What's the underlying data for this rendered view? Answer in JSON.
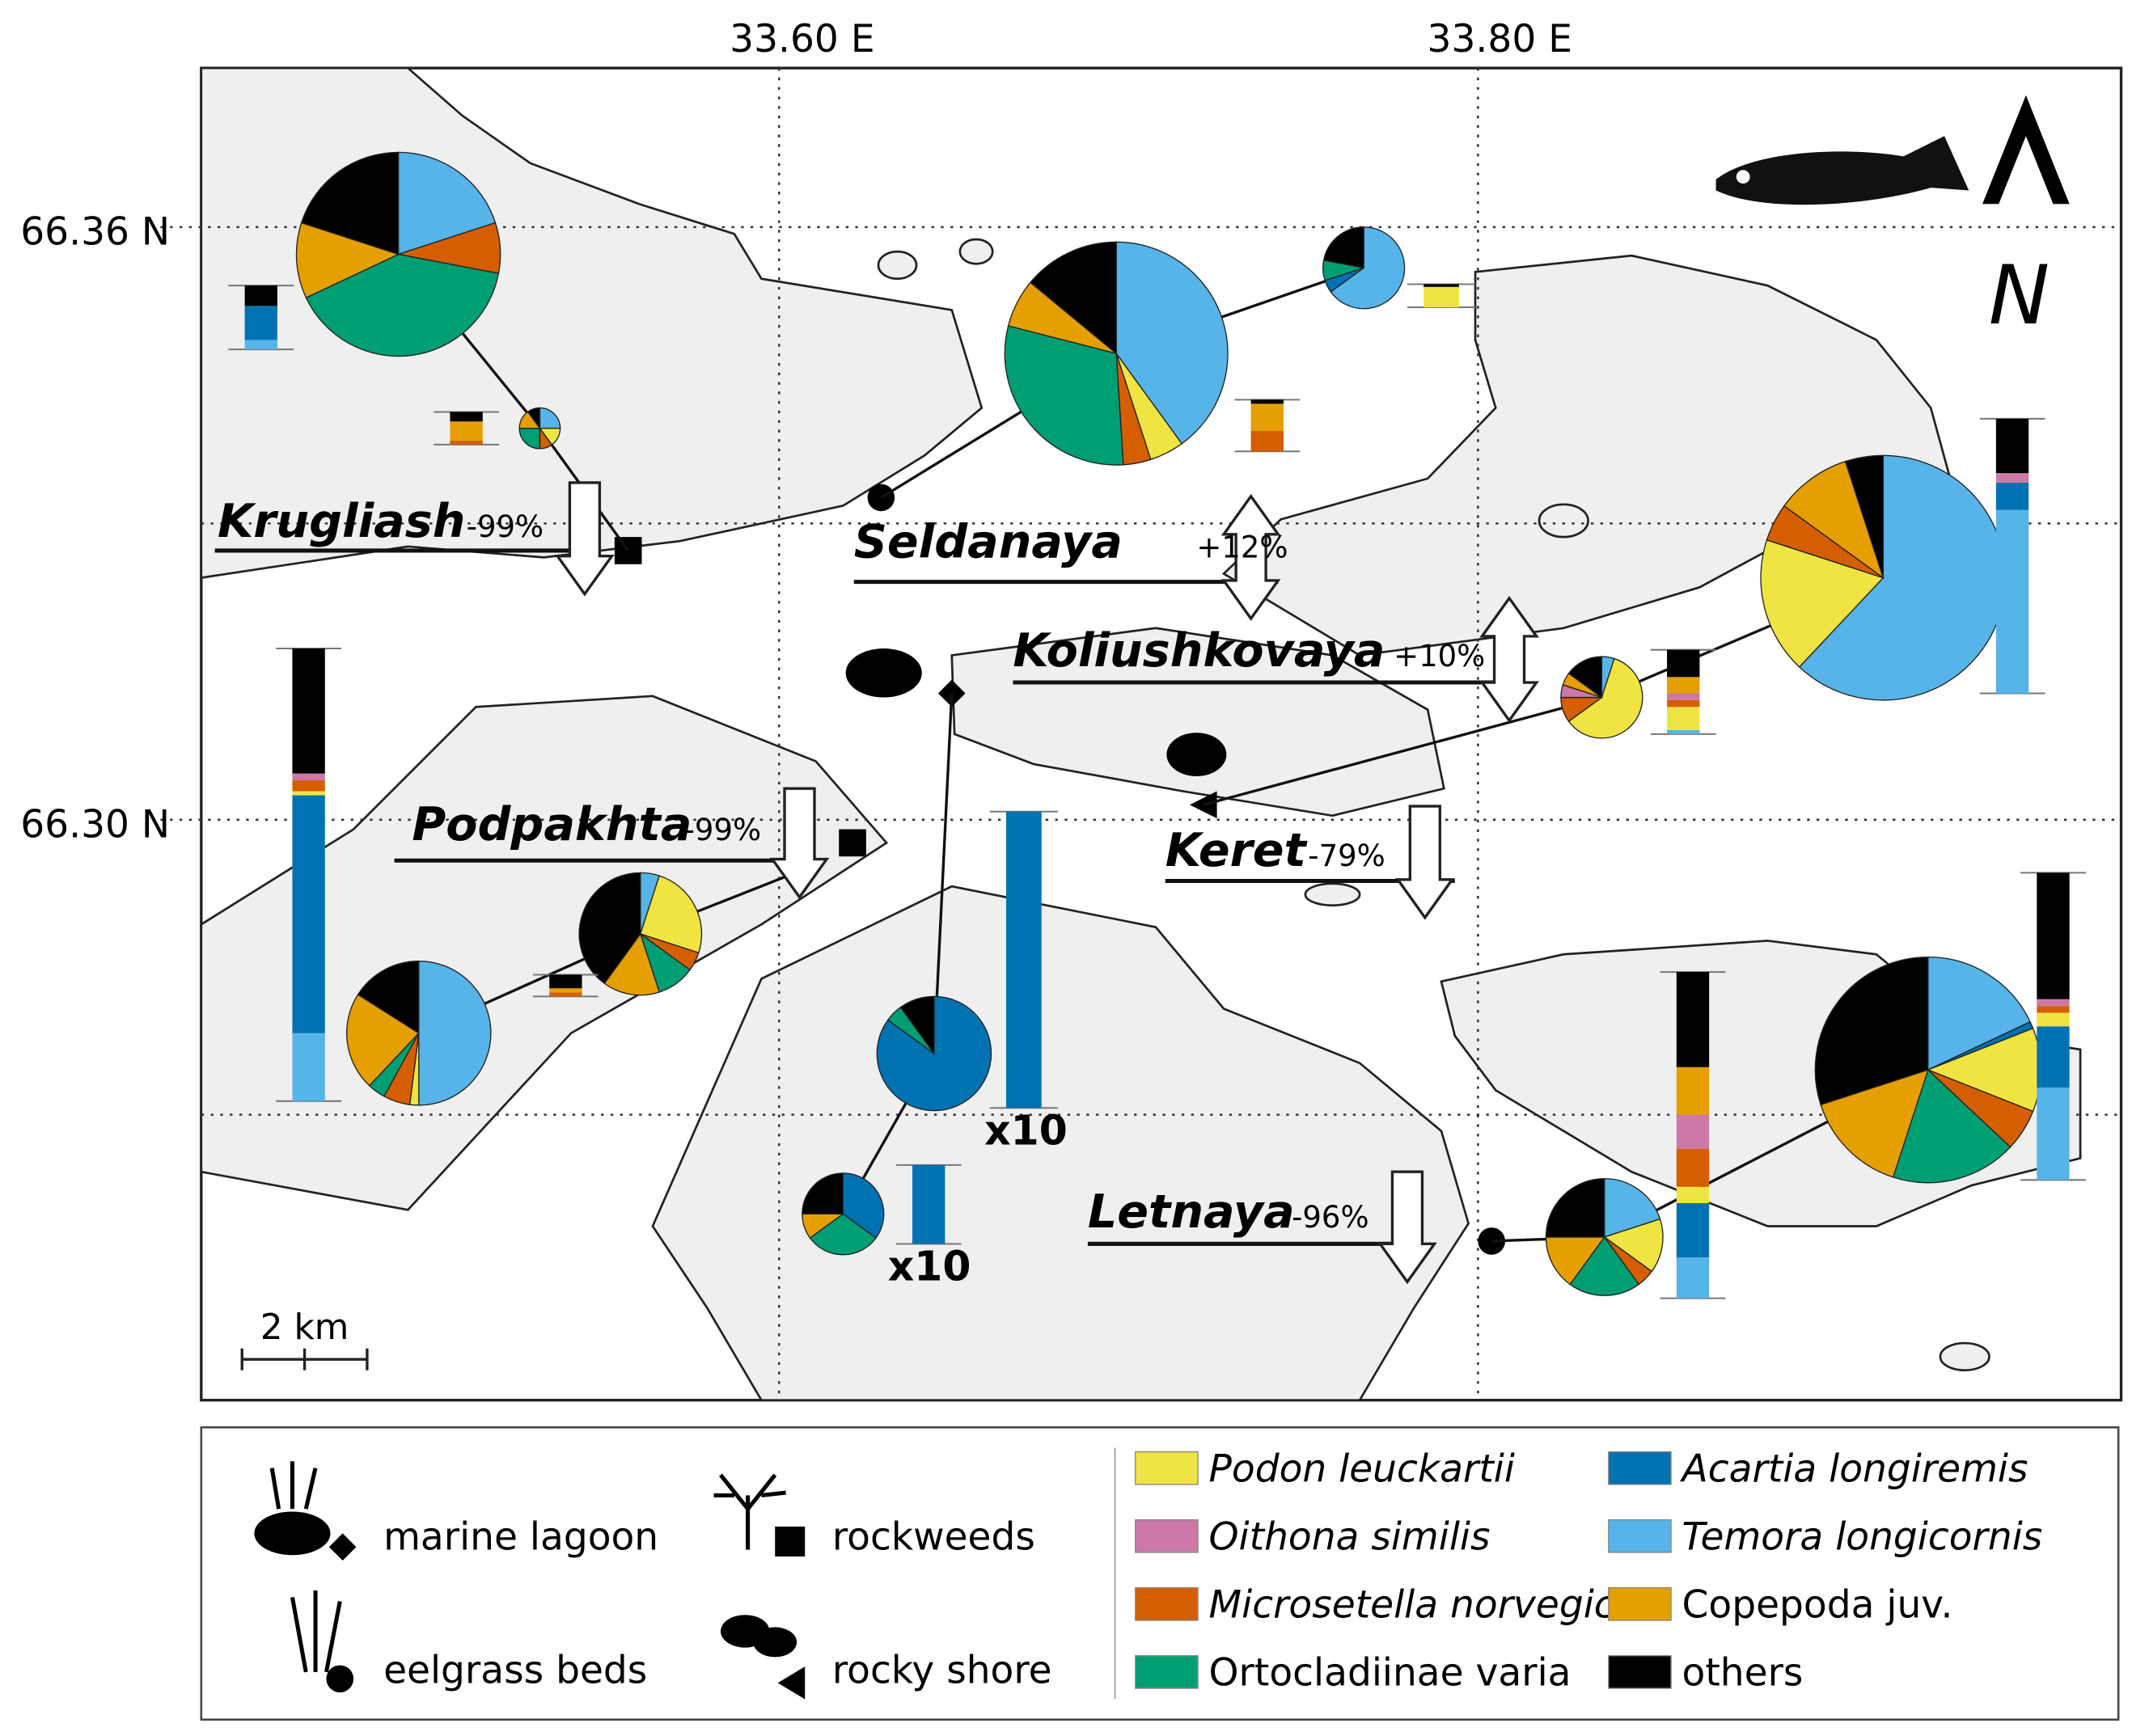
{
  "map": {
    "lon_labels": [
      "33.60 E",
      "33.80 E"
    ],
    "lat_labels": [
      "66.36 N",
      "66.30 N"
    ],
    "north_label": "N",
    "scale_label": "2 km"
  },
  "sites": [
    {
      "name": "Krugliash",
      "change": -99,
      "change_label": "-99%"
    },
    {
      "name": "Seldanaya",
      "change": 12,
      "change_label": "+12%"
    },
    {
      "name": "Koliushkovaya",
      "change": 10,
      "change_label": "+10%"
    },
    {
      "name": "Podpakhta",
      "change": -99,
      "change_label": "-99%"
    },
    {
      "name": "Keret",
      "change": -79,
      "change_label": "-79%"
    },
    {
      "name": "Letnaya",
      "change": -96,
      "change_label": "-96%"
    }
  ],
  "pies": [
    {
      "values": [
        0,
        0,
        0,
        20,
        8,
        12,
        40,
        20
      ]
    },
    {
      "values": [
        15,
        0,
        0,
        25,
        10,
        15,
        25,
        10
      ]
    },
    {
      "values": [
        5,
        0,
        0,
        40,
        4,
        7,
        30,
        14
      ]
    },
    {
      "values": [
        0,
        5,
        0,
        65,
        0,
        0,
        8,
        22
      ]
    },
    {
      "values": [
        18,
        0,
        0,
        62,
        5,
        10,
        0,
        5
      ]
    },
    {
      "values": [
        60,
        0,
        5,
        5,
        10,
        5,
        0,
        15
      ]
    },
    {
      "values": [
        2,
        0,
        0,
        50,
        6,
        22,
        4,
        16
      ]
    },
    {
      "values": [
        25,
        0,
        0,
        5,
        5,
        15,
        10,
        40
      ]
    },
    {
      "values": [
        0,
        85,
        0,
        0,
        0,
        0,
        5,
        10
      ]
    },
    {
      "values": [
        0,
        35,
        0,
        0,
        0,
        10,
        30,
        25
      ]
    },
    {
      "values": [
        15,
        0,
        0,
        20,
        5,
        15,
        20,
        25
      ]
    },
    {
      "values": [
        12,
        1,
        0,
        18,
        6,
        15,
        18,
        30
      ]
    }
  ],
  "bars": [
    {
      "values": [
        0,
        25,
        0,
        7,
        0,
        0,
        0,
        15
      ]
    },
    {
      "values": [
        0,
        0,
        0,
        0,
        3,
        14,
        0,
        7
      ]
    },
    {
      "values": [
        15,
        0,
        0,
        0,
        0,
        0,
        0,
        2
      ]
    },
    {
      "values": [
        0,
        0,
        0,
        0,
        15,
        20,
        0,
        3
      ]
    },
    {
      "values": [
        0,
        20,
        7,
        135,
        0,
        0,
        0,
        40
      ]
    },
    {
      "values": [
        17,
        0,
        5,
        3,
        5,
        12,
        0,
        20
      ]
    },
    {
      "values": [
        3,
        175,
        5,
        50,
        8,
        0,
        0,
        92
      ]
    },
    {
      "values": [
        0,
        0,
        0,
        0,
        3,
        3,
        0,
        10
      ]
    },
    {
      "values": [
        0,
        218,
        0,
        0,
        0,
        0,
        0,
        0
      ]
    },
    {
      "values": [
        0,
        58,
        0,
        0,
        0,
        0,
        0,
        0
      ]
    },
    {
      "values": [
        12,
        40,
        25,
        30,
        28,
        35,
        0,
        70
      ]
    },
    {
      "values": [
        10,
        45,
        5,
        68,
        5,
        0,
        0,
        93
      ]
    }
  ],
  "multipliers": [
    {
      "factor": 10,
      "label": "x10"
    },
    {
      "factor": 10,
      "label": "x10"
    }
  ],
  "legend": {
    "habitats": [
      "marine lagoon",
      "eelgrass beds",
      "rockweeds",
      "rocky shore"
    ],
    "species": [
      {
        "name": "Podon leuckartii",
        "color": "#f0e442",
        "italic": true
      },
      {
        "name": "Acartia longiremis",
        "color": "#0072b2",
        "italic": true
      },
      {
        "name": "Oithona similis",
        "color": "#cc79a7",
        "italic": true
      },
      {
        "name": "Temora longicornis",
        "color": "#56b4e9",
        "italic": true
      },
      {
        "name": "Microsetella norvegica",
        "color": "#d55e00",
        "italic": true
      },
      {
        "name": "Copepoda juv.",
        "color": "#e69f00",
        "italic": false
      },
      {
        "name": "Ortocladiinae varia",
        "color": "#009e73",
        "italic": false
      },
      {
        "name": "others",
        "color": "#000000",
        "italic": false
      }
    ]
  }
}
